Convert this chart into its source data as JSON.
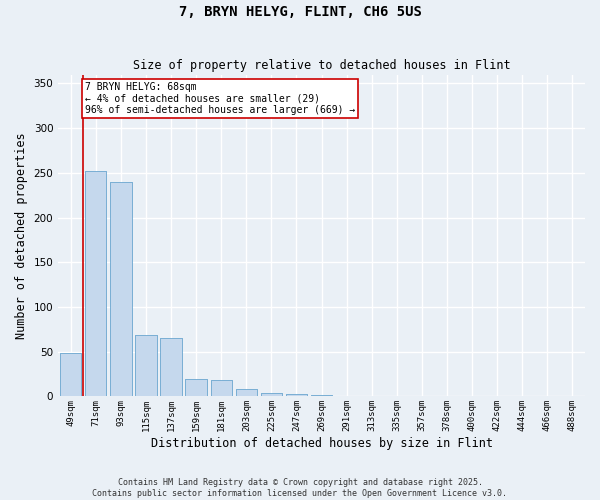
{
  "title": "7, BRYN HELYG, FLINT, CH6 5US",
  "subtitle": "Size of property relative to detached houses in Flint",
  "xlabel": "Distribution of detached houses by size in Flint",
  "ylabel": "Number of detached properties",
  "categories": [
    "49sqm",
    "71sqm",
    "93sqm",
    "115sqm",
    "137sqm",
    "159sqm",
    "181sqm",
    "203sqm",
    "225sqm",
    "247sqm",
    "269sqm",
    "291sqm",
    "313sqm",
    "335sqm",
    "357sqm",
    "378sqm",
    "400sqm",
    "422sqm",
    "444sqm",
    "466sqm",
    "488sqm"
  ],
  "values": [
    49,
    252,
    240,
    69,
    65,
    19,
    18,
    8,
    4,
    3,
    2,
    0,
    0,
    0,
    0,
    0,
    0,
    0,
    0,
    0,
    0
  ],
  "bar_color": "#c5d8ed",
  "bar_edge_color": "#7aafd4",
  "annotation_title": "7 BRYN HELYG: 68sqm",
  "annotation_line1": "← 4% of detached houses are smaller (29)",
  "annotation_line2": "96% of semi-detached houses are larger (669) →",
  "annotation_box_color": "#ffffff",
  "annotation_box_edge": "#cc0000",
  "property_line_color": "#cc0000",
  "ylim": [
    0,
    360
  ],
  "yticks": [
    0,
    50,
    100,
    150,
    200,
    250,
    300,
    350
  ],
  "background_color": "#eaf0f6",
  "grid_color": "#ffffff",
  "footer_line1": "Contains HM Land Registry data © Crown copyright and database right 2025.",
  "footer_line2": "Contains public sector information licensed under the Open Government Licence v3.0."
}
